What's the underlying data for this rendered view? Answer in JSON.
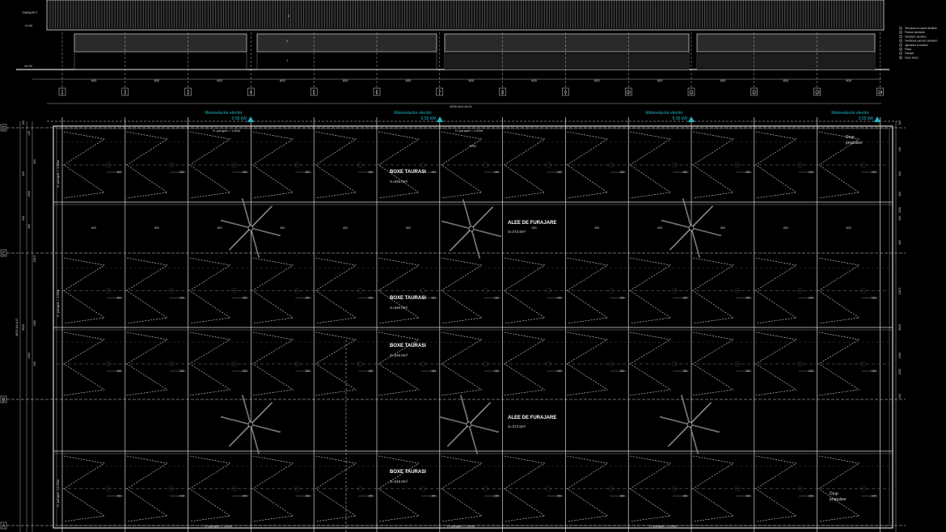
{
  "elevation": {
    "level_label": "PARAPET",
    "level_top": "+4.00",
    "level_ground": "±0.00",
    "window_callout": "2",
    "wall_callout": "1",
    "roof_callout": "3",
    "legend": [
      {
        "num": "1",
        "text": "Tencuiala si vopsea lavabila"
      },
      {
        "num": "2",
        "text": "Panouri sandwich"
      },
      {
        "num": "3",
        "text": "Tamplarie aluminiu"
      },
      {
        "num": "4",
        "text": "Invelitoare panouri sandwich"
      },
      {
        "num": "5",
        "text": "Jgheaburi si burlane"
      },
      {
        "num": "6",
        "text": "Plasa"
      },
      {
        "num": "7",
        "text": "Parapet"
      },
      {
        "num": "8",
        "text": "Soclu beton"
      }
    ],
    "bay_dimension": "600"
  },
  "axes": {
    "columns": [
      "1",
      "2",
      "3",
      "4",
      "5",
      "6",
      "7",
      "8",
      "9",
      "10",
      "11",
      "12",
      "13",
      "14"
    ],
    "rows": [
      "D",
      "C",
      "B",
      "A"
    ],
    "overall_length": "8100 Ax1-Ax14",
    "overall_width": "4920 Ax A-D"
  },
  "plan": {
    "motor_label": "Motoreductor electric",
    "motor_power": "0.55 kW",
    "parapet_label": "H. parapet = 1.60m",
    "internal_dim": "7500",
    "stall_dim": "150",
    "bay_dim": "600",
    "drive_label_1": "Drup",
    "drive_label_2": "propulsor",
    "stall_zone_title": "BOXE TAURASI",
    "stall_zone_area": "S=546.0m²",
    "feed_alley_title": "ALEE DE FURAJARE",
    "feed_alley_area": "S=372.6m²",
    "side_dims": [
      "100",
      "145",
      "420",
      "240",
      "1200",
      "202.5",
      "400",
      "400",
      "1450",
      "3525",
      "1200",
      "240"
    ]
  },
  "colors": {
    "background": "#000000",
    "lines": "#d8d8d8",
    "accent": "#1fb8c4"
  }
}
